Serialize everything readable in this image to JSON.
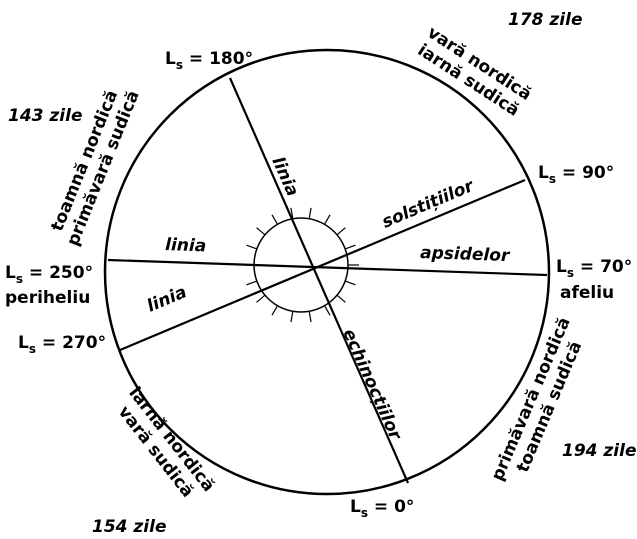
{
  "longitudes": [
    {
      "main": "L",
      "sub": "s",
      "rest": " = 180°"
    },
    {
      "main": "L",
      "sub": "s",
      "rest": " = 90°"
    },
    {
      "main": "L",
      "sub": "s",
      "rest": " = 70°",
      "note": "afeliu"
    },
    {
      "main": "L",
      "sub": "s",
      "rest": " = 0°"
    },
    {
      "main": "L",
      "sub": "s",
      "rest": " = 270°"
    },
    {
      "main": "L",
      "sub": "s",
      "rest": " = 250°",
      "note": "periheliu"
    }
  ],
  "seasons": [
    {
      "days": "178 zile",
      "lines": [
        "vară nordică",
        "iarnă sudică"
      ]
    },
    {
      "days": "194 zile",
      "lines": [
        "primăvară nordică",
        "toamnă sudică"
      ]
    },
    {
      "days": "154 zile",
      "lines": [
        "iarnă nordică",
        "vară sudică"
      ]
    },
    {
      "days": "143 zile",
      "lines": [
        "toamnă nordică",
        "primăvară sudică"
      ]
    }
  ],
  "line_labels": {
    "equinox": [
      "linia",
      "echinocțiilor"
    ],
    "solstice": [
      "linia",
      "solstițiilor"
    ],
    "apsides": [
      "linia",
      "apsidelor"
    ]
  }
}
